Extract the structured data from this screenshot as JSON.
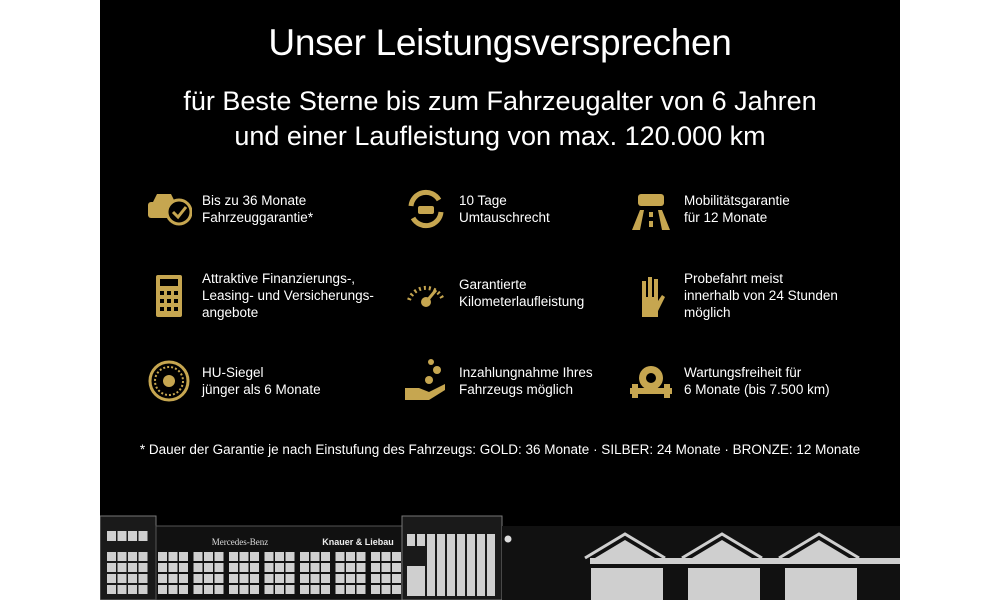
{
  "title": "Unser Leistungsversprechen",
  "subtitle_lines": [
    "für Beste Sterne bis zum Fahrzeugalter von 6 Jahren",
    "und einer Laufleistung von max. 120.000 km"
  ],
  "accent_color": "#c6a650",
  "items": [
    {
      "icon": "car-check-icon",
      "text": "Bis zu 36 Monate\nFahrzeuggarantie*"
    },
    {
      "icon": "car-exchange-icon",
      "text": "10 Tage\nUmtauschrecht"
    },
    {
      "icon": "car-road-icon",
      "text": "Mobilitätsgarantie\nfür 12 Monate"
    },
    {
      "icon": "calculator-icon",
      "text": "Attraktive Finanzierungs-,\nLeasing- und Versicherungs-\nangebote"
    },
    {
      "icon": "speedometer-icon",
      "text": "Garantierte\nKilometerlaufleistung"
    },
    {
      "icon": "hand-key-icon",
      "text": "Probefahrt meist\ninnerhalb von 24 Stunden\nmöglich"
    },
    {
      "icon": "inspection-seal-icon",
      "text": "HU-Siegel\njünger als 6 Monate"
    },
    {
      "icon": "hand-coins-icon",
      "text": "Inzahlungnahme Ihres\nFahrzeugs möglich"
    },
    {
      "icon": "gear-wrench-icon",
      "text": "Wartungsfreiheit für\n6 Monate (bis 7.500 km)"
    }
  ],
  "footnote": "* Dauer der Garantie je nach Einstufung des Fahrzeugs: GOLD: 36 Monate · SILBER: 24 Monate · BRONZE: 12 Monate",
  "building": {
    "sign_left": "Mercedes-Benz",
    "sign_center": "Knauer & Liebau"
  }
}
